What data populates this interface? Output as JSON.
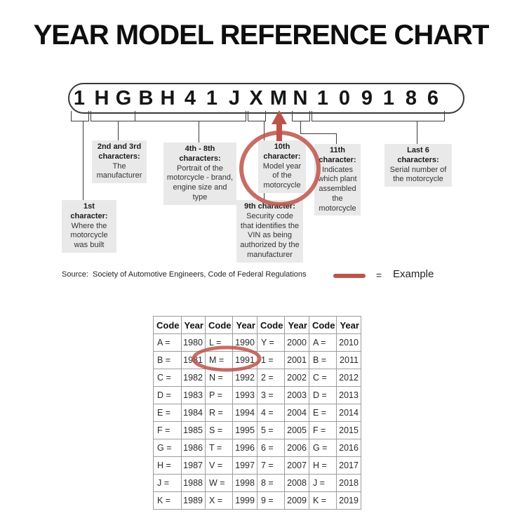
{
  "title": "YEAR MODEL REFERENCE CHART",
  "vin": {
    "chars": [
      "1",
      "H",
      "G",
      "B",
      "H",
      "4",
      "1",
      "J",
      "X",
      "M",
      "N",
      "1",
      "0",
      "9",
      "1",
      "8",
      "6"
    ]
  },
  "callouts": {
    "first": {
      "bold_lines": [
        "1st",
        "character:"
      ],
      "lines": [
        "Where the",
        "motorcycle",
        "was built"
      ]
    },
    "second_third": {
      "bold_lines": [
        "2nd and 3rd",
        "characters:"
      ],
      "lines": [
        "The",
        "manufacturer"
      ]
    },
    "fourth_eighth": {
      "bold_lines": [
        "4th - 8th",
        "characters:"
      ],
      "lines": [
        "Portrait of the",
        "motorcycle - brand,",
        "engine size and type"
      ]
    },
    "ninth": {
      "bold_lines": [
        "9th character:"
      ],
      "lines": [
        "Security code",
        "that identifies the",
        "VIN as being",
        "authorized by the",
        "manufacturer"
      ]
    },
    "tenth": {
      "bold_lines": [
        "10th",
        "character:"
      ],
      "lines": [
        "Model year",
        "of the",
        "motorcycle"
      ]
    },
    "eleventh": {
      "bold_lines": [
        "11th",
        "character:"
      ],
      "lines": [
        "Indicates",
        "which plant",
        "assembled",
        "the",
        "motorcycle"
      ]
    },
    "last_six": {
      "bold_lines": [
        "Last 6",
        "characters:"
      ],
      "lines": [
        "Serial number of",
        "the motorcycle"
      ]
    }
  },
  "source_line": "Source:  Society of Automotive Engineers, Code of Federal Regulations",
  "legend": {
    "equals": "=",
    "label": "Example"
  },
  "colors": {
    "accent_red": "#bd544b",
    "callout_bg": "#e9e9e9"
  },
  "table": {
    "headers": [
      "Code",
      "Year",
      "Code",
      "Year",
      "Code",
      "Year",
      "Code",
      "Year"
    ],
    "rows": [
      [
        "A =",
        "1980",
        "L =",
        "1990",
        "Y =",
        "2000",
        "A =",
        "2010"
      ],
      [
        "B =",
        "1981",
        "M =",
        "1991",
        "1 =",
        "2001",
        "B =",
        "2011"
      ],
      [
        "C =",
        "1982",
        "N =",
        "1992",
        "2 =",
        "2002",
        "C =",
        "2012"
      ],
      [
        "D =",
        "1983",
        "P =",
        "1993",
        "3 =",
        "2003",
        "D =",
        "2013"
      ],
      [
        "E =",
        "1984",
        "R =",
        "1994",
        "4 =",
        "2004",
        "E =",
        "2014"
      ],
      [
        "F =",
        "1985",
        "S =",
        "1995",
        "5 =",
        "2005",
        "F =",
        "2015"
      ],
      [
        "G =",
        "1986",
        "T =",
        "1996",
        "6 =",
        "2006",
        "G =",
        "2016"
      ],
      [
        "H =",
        "1987",
        "V =",
        "1997",
        "7 =",
        "2007",
        "H =",
        "2017"
      ],
      [
        "J =",
        "1988",
        "W =",
        "1998",
        "8 =",
        "2008",
        "J =",
        "2018"
      ],
      [
        "K =",
        "1989",
        "X =",
        "1999",
        "9 =",
        "2009",
        "K =",
        "2019"
      ]
    ]
  }
}
